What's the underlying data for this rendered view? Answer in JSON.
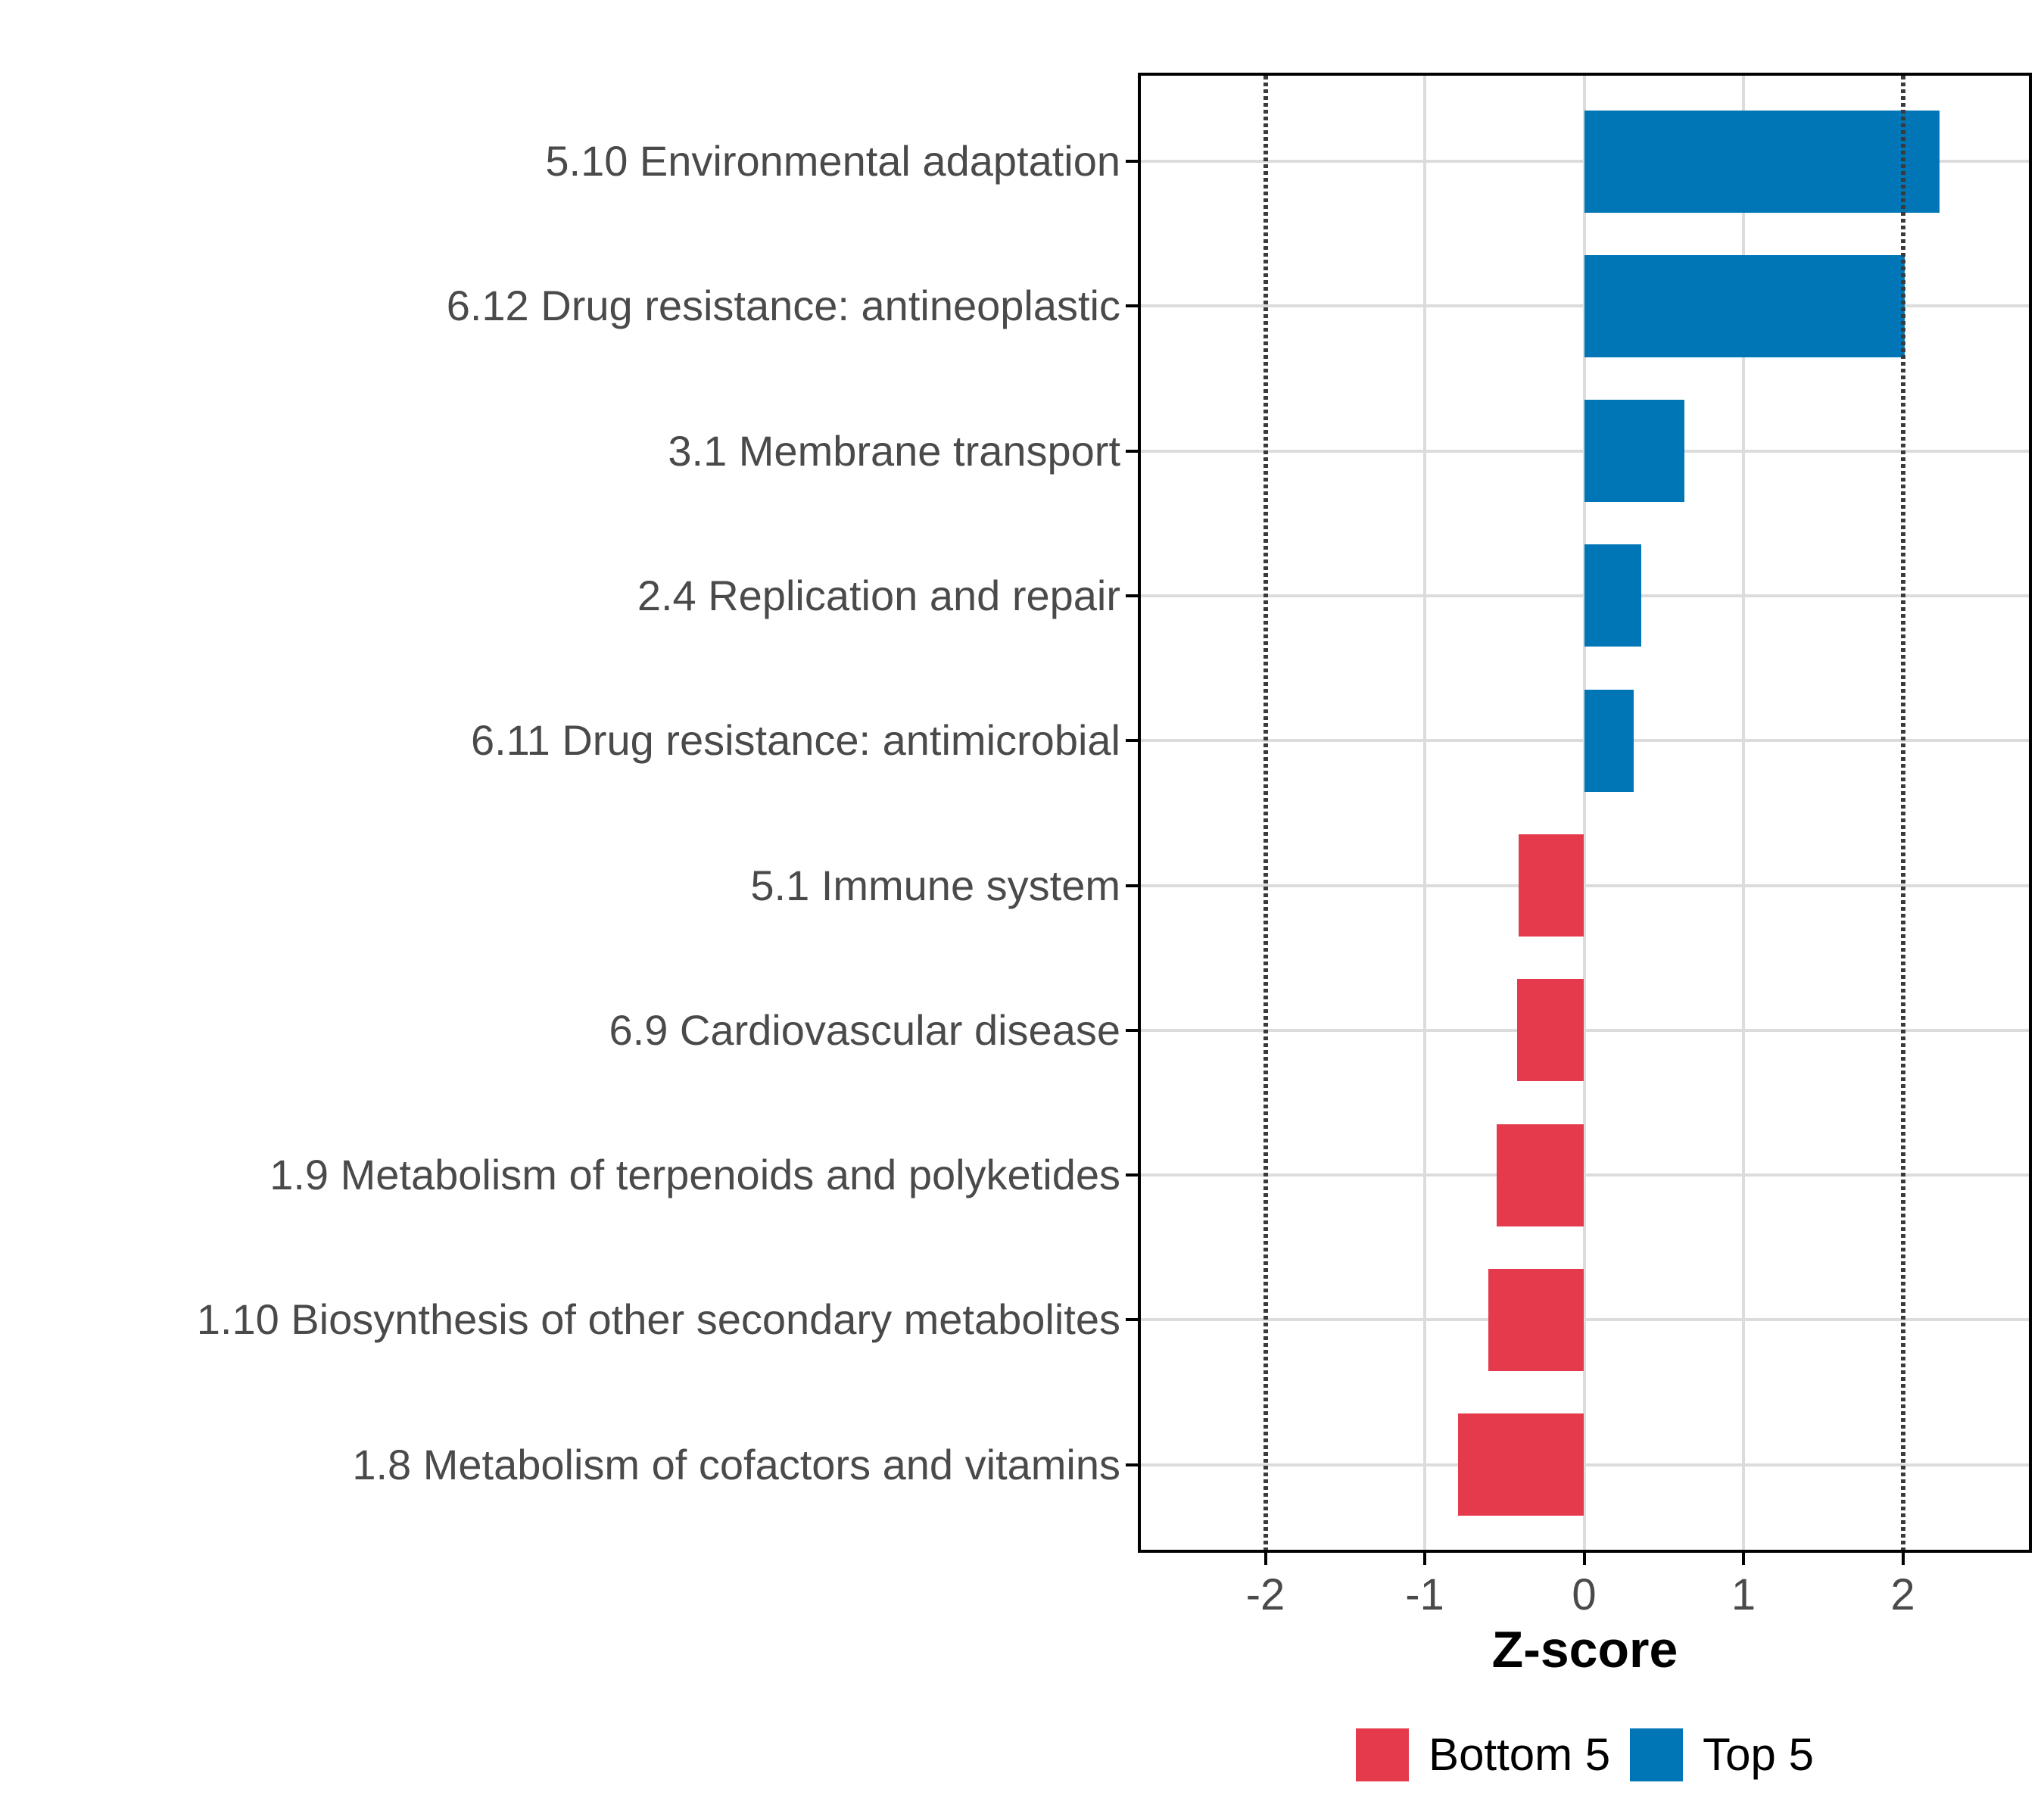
{
  "chart_data": {
    "type": "bar",
    "orientation": "horizontal",
    "title": "",
    "xlabel": "Z-score",
    "ylabel": "",
    "categories": [
      "5.10 Environmental adaptation",
      "6.12 Drug resistance: antineoplastic",
      "3.1 Membrane transport",
      "2.4 Replication and repair",
      "6.11 Drug resistance: antimicrobial",
      "5.1 Immune system",
      "6.9 Cardiovascular disease",
      "1.9 Metabolism of terpenoids and polyketides",
      "1.10 Biosynthesis of other secondary metabolites",
      "1.8 Metabolism of cofactors and vitamins"
    ],
    "values": [
      2.23,
      2.01,
      0.63,
      0.36,
      0.31,
      -0.41,
      -0.42,
      -0.55,
      -0.6,
      -0.79
    ],
    "groups": [
      "Top 5",
      "Top 5",
      "Top 5",
      "Top 5",
      "Top 5",
      "Bottom 5",
      "Bottom 5",
      "Bottom 5",
      "Bottom 5",
      "Bottom 5"
    ],
    "x_tick_labels": [
      "-2",
      "-1",
      "0",
      "1",
      "2"
    ],
    "x_tick_values": [
      -2,
      -1,
      0,
      1,
      2
    ],
    "gridline_values": [
      -1,
      0,
      1
    ],
    "reference_line_values": [
      -2,
      2
    ],
    "xlim": [
      -2.78,
      2.79
    ],
    "grid": true,
    "legend_position": "bottom",
    "legend": [
      {
        "label": "Bottom 5",
        "color": "#E43A4B"
      },
      {
        "label": "Top 5",
        "color": "#0076B6"
      }
    ]
  },
  "colors": {
    "positive_bar": "#0076B6",
    "negative_bar": "#E43A4B",
    "gridline": "#DCDCDC",
    "reference_line": "#3B3B3B",
    "axis_text": "#4A4A4A",
    "panel_border": "#000000",
    "background": "#FFFFFF"
  }
}
